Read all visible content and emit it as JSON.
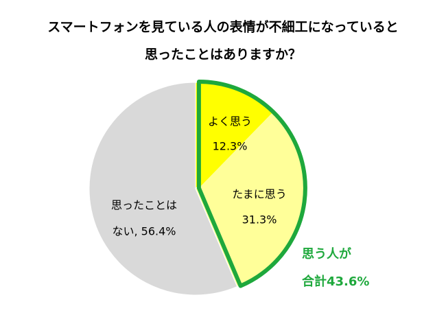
{
  "chart_data": {
    "type": "pie",
    "title": [
      "スマートフォンを見ている人の表情が不細工になっていると",
      "思ったことはありますか？"
    ],
    "categories": [
      "よく思う",
      "たまに思う",
      "思ったことは"
    ],
    "values": [
      12.3,
      31.3,
      56.4
    ],
    "value_labels": [
      "12.3%",
      "31.3%",
      "ない, 56.4%"
    ],
    "colors": [
      "#ffff00",
      "#ffff99",
      "#d9d9d9"
    ],
    "annotation": [
      "思う人が",
      "合計43.6%"
    ],
    "highlight_color": "#1ea83c"
  }
}
